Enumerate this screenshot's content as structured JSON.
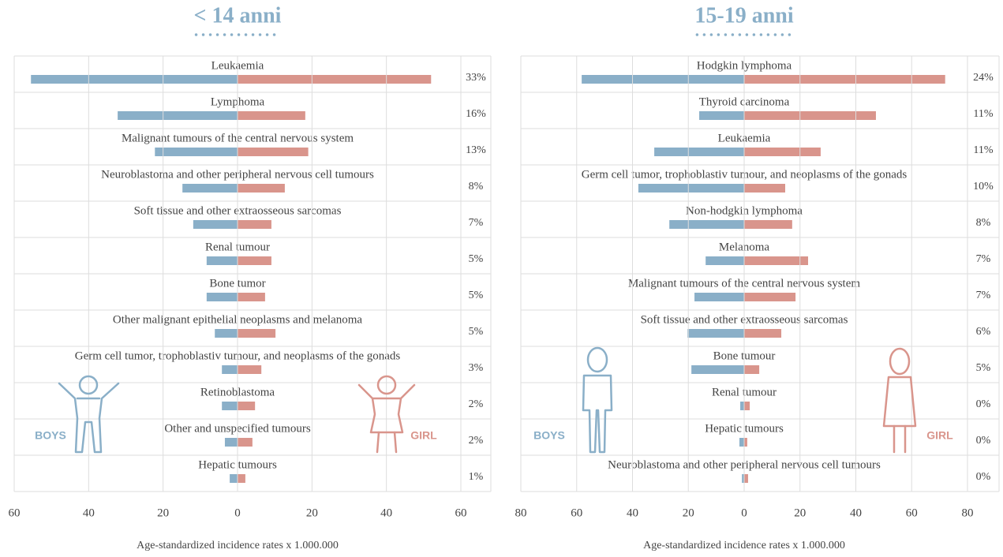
{
  "chart_data": [
    {
      "type": "bar",
      "orientation": "horizontal",
      "title": "< 14 anni",
      "categories": [
        "Leukaemia",
        "Lymphoma",
        "Malignant tumours of the central nervous system",
        "Neuroblastoma and other peripheral nervous cell tumours",
        "Soft tissue and other extraosseous sarcomas",
        "Renal tumour",
        "Bone tumor",
        "Other malignant epithelial neoplasms and melanoma",
        "Germ cell tumor, trophoblastiv tumour, and neoplasms of the gonads",
        "Retinoblastoma",
        "Other and unspecified tumours",
        "Hepatic tumours"
      ],
      "series": [
        {
          "name": "BOYS",
          "color": "#8aafc8",
          "values": [
            55.5,
            32.2,
            22.2,
            14.8,
            11.9,
            8.3,
            8.3,
            6.1,
            4.2,
            4.2,
            3.4,
            2.1
          ]
        },
        {
          "name": "GIRL",
          "color": "#d9958c",
          "values": [
            52,
            18.2,
            19,
            12.7,
            9.1,
            9.1,
            7.4,
            10.2,
            6.4,
            4.7,
            4,
            2.1
          ]
        }
      ],
      "shares": {
        "values": [
          33,
          16,
          13,
          8,
          7,
          5,
          5,
          5,
          3,
          2,
          2,
          1
        ],
        "value_labels": [
          "33%",
          "16%",
          "13%",
          "8%",
          "7%",
          "5%",
          "5%",
          "5%",
          "3%",
          "2%",
          "2%",
          "1%"
        ]
      },
      "xlim": [
        -60,
        60
      ],
      "xticks": [
        {
          "value": -60,
          "label": "60"
        },
        {
          "value": -40,
          "label": "40"
        },
        {
          "value": -20,
          "label": "20"
        },
        0,
        20,
        40,
        60
      ],
      "x_label": "Age-standardized incidence rates x 1.000.000",
      "grid": true
    },
    {
      "type": "bar",
      "orientation": "horizontal",
      "title": "15-19 anni",
      "categories": [
        "Hodgkin lymphoma",
        "Thyroid carcinoma",
        "Leukaemia",
        "Germ cell tumor, trophoblastiv tumour, and neoplasms of the gonads",
        "Non-hodgkin lymphoma",
        "Melanoma",
        "Malignant tumours of the central nervous system",
        "Soft tissue and other extraosseous sarcomas",
        "Bone tumour",
        "Renal tumour",
        "Hepatic tumours",
        "Neuroblastoma and other peripheral nervous cell tumours"
      ],
      "series": [
        {
          "name": "BOYS",
          "color": "#8aafc8",
          "values": [
            58.2,
            16.1,
            32.2,
            37.9,
            26.8,
            13.8,
            17.8,
            20.3,
            18.9,
            1.4,
            1.7,
            0.8
          ]
        },
        {
          "name": "GIRL",
          "color": "#d9958c",
          "values": [
            72,
            47.2,
            27.4,
            14.7,
            17.2,
            22.9,
            18.4,
            13.3,
            5.4,
            2,
            1.1,
            1.4
          ]
        }
      ],
      "shares": {
        "values": [
          24,
          11,
          11,
          10,
          8,
          7,
          7,
          6,
          5,
          0,
          0,
          0
        ],
        "value_labels": [
          "24%",
          "11%",
          "11%",
          "10%",
          "8%",
          "7%",
          "7%",
          "6%",
          "5%",
          "0%",
          "0%",
          "0%"
        ]
      },
      "xlim": [
        -80,
        80
      ],
      "xticks": [
        {
          "value": -80,
          "label": "80"
        },
        {
          "value": -60,
          "label": "60"
        },
        {
          "value": -40,
          "label": "40"
        },
        {
          "value": -20,
          "label": "20"
        },
        0,
        20,
        40,
        60,
        80
      ],
      "x_label": "Age-standardized incidence rates x 1.000.000",
      "grid": true
    }
  ]
}
